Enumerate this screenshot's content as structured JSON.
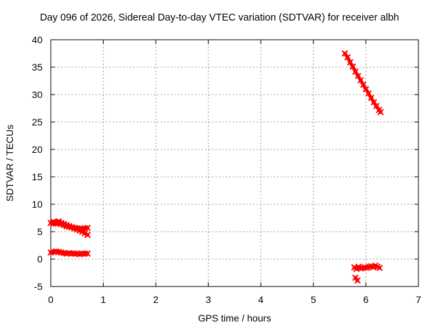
{
  "chart_data": {
    "type": "scatter",
    "title": "Day 096 of 2026, Sidereal Day-to-day VTEC variation (SDTVAR) for receiver albh",
    "xlabel": "GPS time / hours",
    "ylabel": "SDTVAR / TECUs",
    "xlim": [
      0,
      7
    ],
    "ylim": [
      -5,
      40
    ],
    "xticks": [
      "0",
      "1",
      "2",
      "3",
      "4",
      "5",
      "6",
      "7"
    ],
    "yticks": [
      "-5",
      "0",
      "5",
      "10",
      "15",
      "20",
      "25",
      "30",
      "35",
      "40"
    ],
    "grid": true,
    "marker_color": "#ff0000",
    "series": [
      {
        "x": [
          0.0,
          0.05,
          0.1,
          0.15,
          0.2,
          0.25,
          0.3,
          0.35,
          0.4,
          0.45,
          0.5,
          0.55,
          0.6,
          0.65,
          0.7
        ],
        "y": [
          6.6,
          6.5,
          6.5,
          6.6,
          6.4,
          6.2,
          6.0,
          5.9,
          5.8,
          5.7,
          5.6,
          5.6,
          5.5,
          5.6,
          5.7
        ]
      },
      {
        "x": [
          0.05,
          0.1,
          0.15,
          0.2,
          0.25,
          0.3,
          0.35,
          0.4,
          0.45,
          0.5,
          0.55,
          0.6,
          0.65,
          0.7
        ],
        "y": [
          6.8,
          6.7,
          6.9,
          6.6,
          6.4,
          6.2,
          6.0,
          5.8,
          5.6,
          5.4,
          5.2,
          5.0,
          4.7,
          4.4
        ]
      },
      {
        "x": [
          0.0,
          0.05,
          0.1,
          0.15,
          0.2,
          0.25,
          0.3,
          0.35,
          0.4,
          0.45,
          0.5,
          0.55,
          0.6,
          0.65,
          0.7
        ],
        "y": [
          1.2,
          1.3,
          1.4,
          1.3,
          1.2,
          1.1,
          1.0,
          1.1,
          1.0,
          1.0,
          1.0,
          0.9,
          1.0,
          1.0,
          1.0
        ]
      },
      {
        "x": [
          5.6,
          5.65,
          5.7,
          5.75,
          5.8,
          5.85,
          5.9,
          5.95,
          6.0,
          6.05,
          6.1,
          6.15,
          6.2,
          6.25,
          6.28
        ],
        "y": [
          37.5,
          36.8,
          35.9,
          35.1,
          34.2,
          33.4,
          32.6,
          31.8,
          31.0,
          30.2,
          29.4,
          28.6,
          27.9,
          27.2,
          26.8
        ]
      },
      {
        "x": [
          5.78,
          5.82,
          5.86,
          5.9,
          5.94,
          5.98,
          6.02,
          6.06,
          6.1,
          6.14,
          6.18,
          6.22,
          6.26
        ],
        "y": [
          -1.5,
          -1.8,
          -1.4,
          -1.7,
          -1.6,
          -1.5,
          -1.6,
          -1.4,
          -1.3,
          -1.5,
          -1.2,
          -1.4,
          -1.6
        ]
      },
      {
        "x": [
          5.8,
          5.84
        ],
        "y": [
          -3.4,
          -3.9
        ]
      }
    ]
  }
}
